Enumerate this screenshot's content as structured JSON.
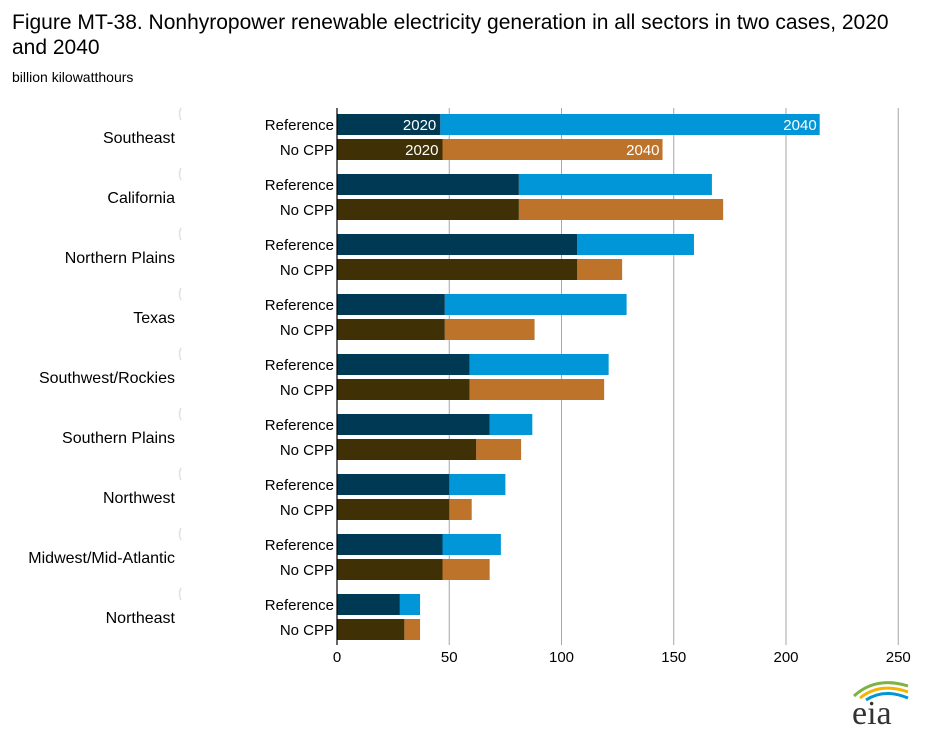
{
  "title": "Figure MT-38. Nonhyropower renewable electricity generation in all sectors in two cases, 2020 and 2040",
  "subtitle": "billion kilowatthours",
  "logo_text": "eia",
  "colors": {
    "reference_2020": "#003953",
    "reference_2040": "#0096d7",
    "nocpp_2020": "#3f3005",
    "nocpp_2040": "#bd732a"
  },
  "chart_data": {
    "type": "bar",
    "orientation": "horizontal",
    "stacked": true,
    "x_axis": {
      "range": [
        0,
        250
      ],
      "ticks": [
        0,
        50,
        100,
        150,
        200,
        250
      ],
      "grid": true
    },
    "series_segments": [
      "2020",
      "2040"
    ],
    "bar_labels": [
      "2020",
      "2040"
    ],
    "categories": [
      {
        "region": "Southeast",
        "bars": [
          {
            "case": "Reference",
            "v2020": 46,
            "v2040": 215
          },
          {
            "case": "No CPP",
            "v2020": 47,
            "v2040": 145
          }
        ]
      },
      {
        "region": "California",
        "bars": [
          {
            "case": "Reference",
            "v2020": 81,
            "v2040": 167
          },
          {
            "case": "No CPP",
            "v2020": 81,
            "v2040": 172
          }
        ]
      },
      {
        "region": "Northern Plains",
        "bars": [
          {
            "case": "Reference",
            "v2020": 107,
            "v2040": 159
          },
          {
            "case": "No CPP",
            "v2020": 107,
            "v2040": 127
          }
        ]
      },
      {
        "region": "Texas",
        "bars": [
          {
            "case": "Reference",
            "v2020": 48,
            "v2040": 129
          },
          {
            "case": "No CPP",
            "v2020": 48,
            "v2040": 88
          }
        ]
      },
      {
        "region": "Southwest/Rockies",
        "bars": [
          {
            "case": "Reference",
            "v2020": 59,
            "v2040": 121
          },
          {
            "case": "No CPP",
            "v2020": 59,
            "v2040": 119
          }
        ]
      },
      {
        "region": "Southern Plains",
        "bars": [
          {
            "case": "Reference",
            "v2020": 68,
            "v2040": 87
          },
          {
            "case": "No CPP",
            "v2020": 62,
            "v2040": 82
          }
        ]
      },
      {
        "region": "Northwest",
        "bars": [
          {
            "case": "Reference",
            "v2020": 50,
            "v2040": 75
          },
          {
            "case": "No CPP",
            "v2020": 50,
            "v2040": 60
          }
        ]
      },
      {
        "region": "Midwest/Mid-Atlantic",
        "bars": [
          {
            "case": "Reference",
            "v2020": 47,
            "v2040": 73
          },
          {
            "case": "No CPP",
            "v2020": 47,
            "v2040": 68
          }
        ]
      },
      {
        "region": "Northeast",
        "bars": [
          {
            "case": "Reference",
            "v2020": 28,
            "v2040": 37
          },
          {
            "case": "No CPP",
            "v2020": 30,
            "v2040": 37
          }
        ]
      }
    ]
  }
}
